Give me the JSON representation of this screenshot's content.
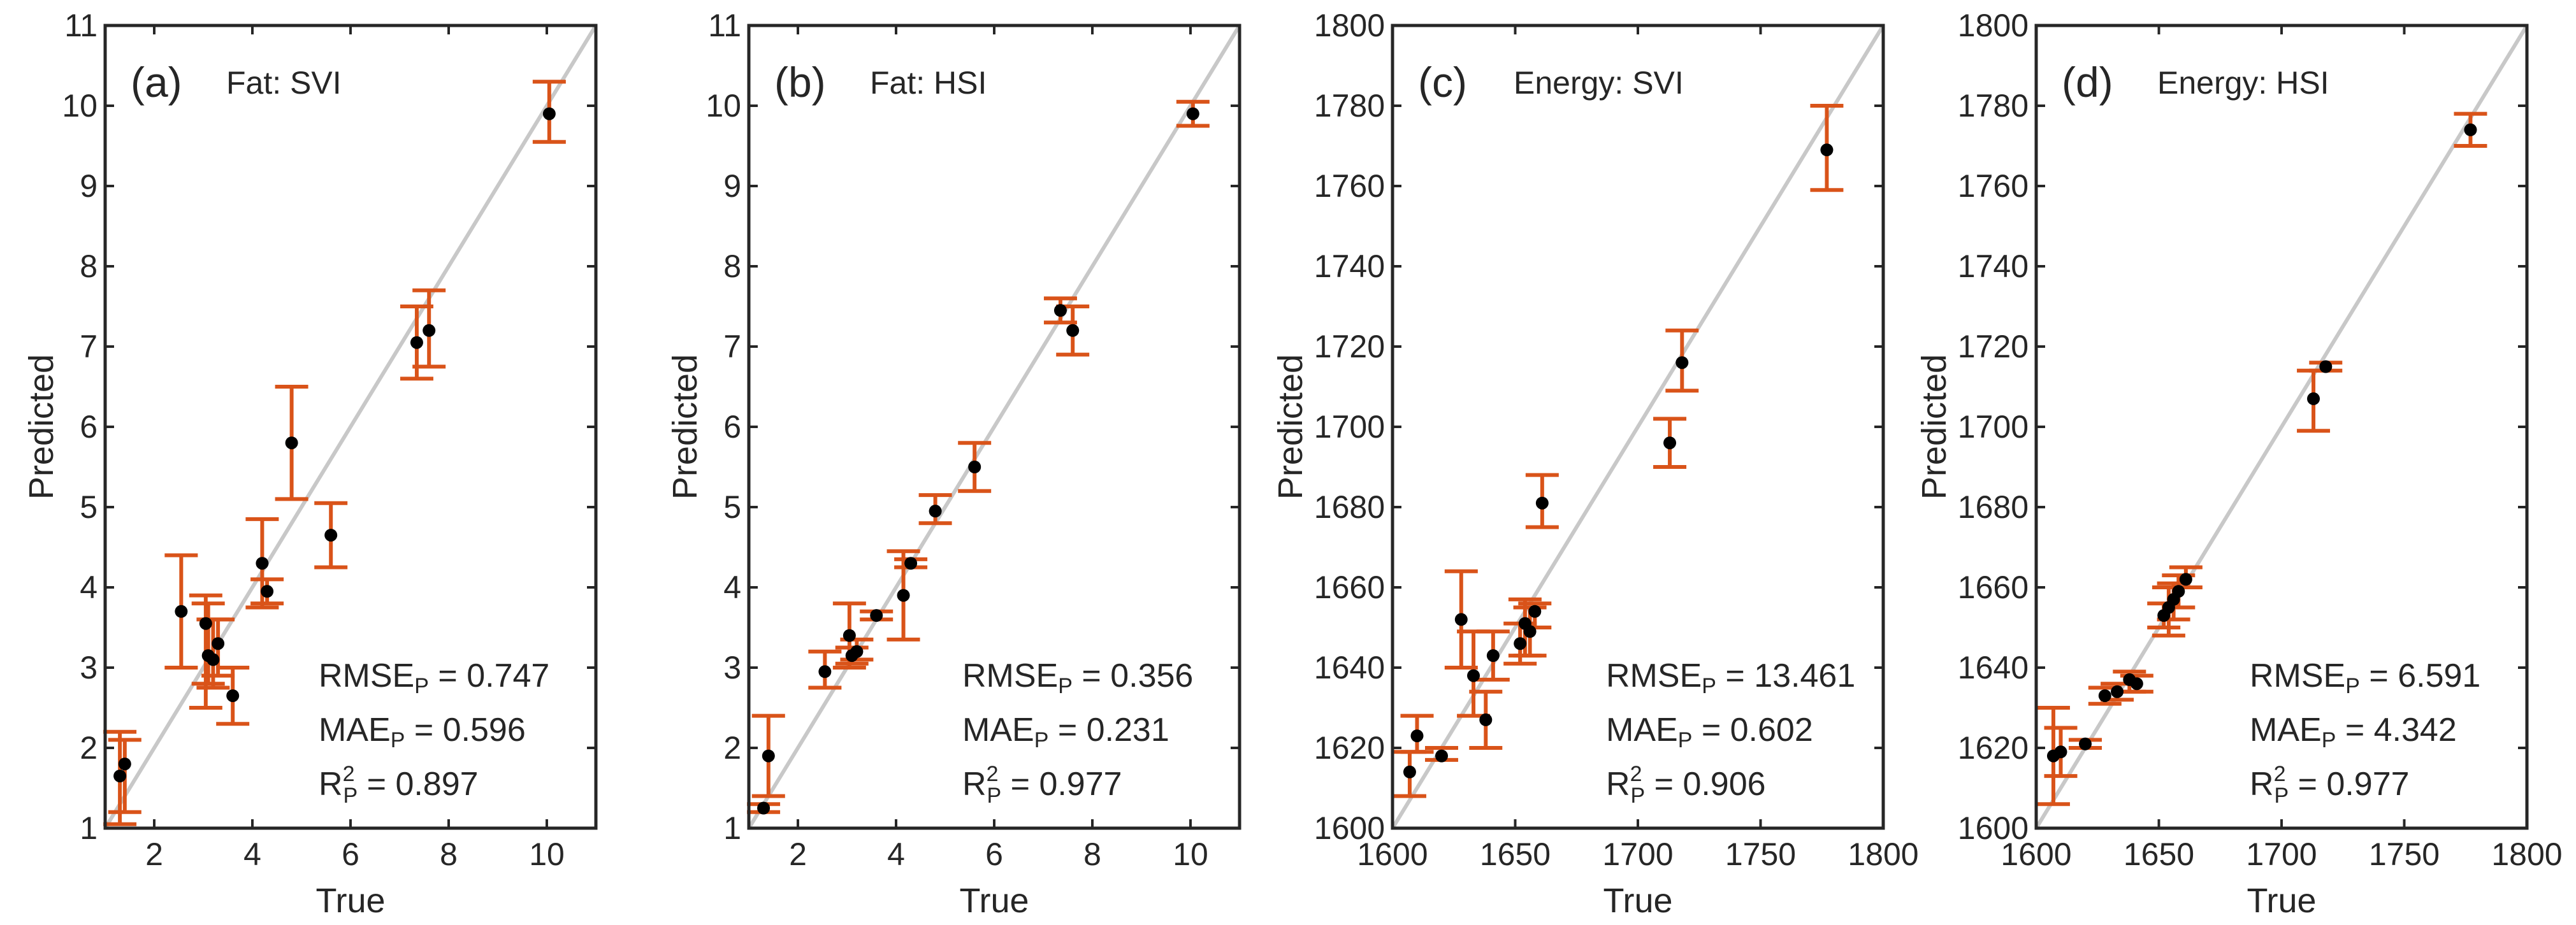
{
  "figure": {
    "description_text": null
  },
  "colors": {
    "axis": "#262626",
    "identity_line": "#c8c8c8",
    "error_bar": "#d95319",
    "point": "#000000"
  },
  "chart_data": [
    {
      "type": "scatter",
      "panel_tag": "(a)",
      "title": "Fat: SVI",
      "xlabel": "True",
      "ylabel": "Predicted",
      "xlim": [
        1,
        11
      ],
      "ylim": [
        1,
        11
      ],
      "xticks": [
        2,
        4,
        6,
        8,
        10
      ],
      "yticks": [
        1,
        2,
        3,
        4,
        5,
        6,
        7,
        8,
        9,
        10,
        11
      ],
      "identity_line": true,
      "metrics": {
        "rmse_label": "RMSE",
        "rmse_sub": "P",
        "rmse_value": "0.747",
        "mae_label": "MAE",
        "mae_sub": "P",
        "mae_value": "0.596",
        "r2_label": "R",
        "r2_sup": "2",
        "r2_sub": "P",
        "r2_value": "0.897"
      },
      "points": [
        {
          "x": 1.3,
          "y": 1.65,
          "lo": 1.05,
          "hi": 2.2
        },
        {
          "x": 1.4,
          "y": 1.8,
          "lo": 1.2,
          "hi": 2.1
        },
        {
          "x": 2.55,
          "y": 3.7,
          "lo": 3.0,
          "hi": 4.4
        },
        {
          "x": 3.05,
          "y": 3.55,
          "lo": 2.5,
          "hi": 3.9
        },
        {
          "x": 3.1,
          "y": 3.15,
          "lo": 2.8,
          "hi": 3.8
        },
        {
          "x": 3.2,
          "y": 3.1,
          "lo": 2.75,
          "hi": 3.6
        },
        {
          "x": 3.3,
          "y": 3.3,
          "lo": 2.9,
          "hi": 3.6
        },
        {
          "x": 3.6,
          "y": 2.65,
          "lo": 2.3,
          "hi": 3.0
        },
        {
          "x": 4.2,
          "y": 4.3,
          "lo": 3.75,
          "hi": 4.85
        },
        {
          "x": 4.3,
          "y": 3.95,
          "lo": 3.8,
          "hi": 4.1
        },
        {
          "x": 4.8,
          "y": 5.8,
          "lo": 5.1,
          "hi": 6.5
        },
        {
          "x": 5.6,
          "y": 4.65,
          "lo": 4.25,
          "hi": 5.05
        },
        {
          "x": 7.35,
          "y": 7.05,
          "lo": 6.6,
          "hi": 7.5
        },
        {
          "x": 7.6,
          "y": 7.2,
          "lo": 6.75,
          "hi": 7.7
        },
        {
          "x": 10.05,
          "y": 9.9,
          "lo": 9.55,
          "hi": 10.3
        }
      ]
    },
    {
      "type": "scatter",
      "panel_tag": "(b)",
      "title": "Fat: HSI",
      "xlabel": "True",
      "ylabel": "Predicted",
      "xlim": [
        1,
        11
      ],
      "ylim": [
        1,
        11
      ],
      "xticks": [
        2,
        4,
        6,
        8,
        10
      ],
      "yticks": [
        1,
        2,
        3,
        4,
        5,
        6,
        7,
        8,
        9,
        10,
        11
      ],
      "identity_line": true,
      "metrics": {
        "rmse_label": "RMSE",
        "rmse_sub": "P",
        "rmse_value": "0.356",
        "mae_label": "MAE",
        "mae_sub": "P",
        "mae_value": "0.231",
        "r2_label": "R",
        "r2_sup": "2",
        "r2_sub": "P",
        "r2_value": "0.977"
      },
      "points": [
        {
          "x": 1.3,
          "y": 1.25,
          "lo": 1.2,
          "hi": 1.3
        },
        {
          "x": 1.4,
          "y": 1.9,
          "lo": 1.4,
          "hi": 2.4
        },
        {
          "x": 2.55,
          "y": 2.95,
          "lo": 2.75,
          "hi": 3.2
        },
        {
          "x": 3.05,
          "y": 3.4,
          "lo": 3.0,
          "hi": 3.8
        },
        {
          "x": 3.1,
          "y": 3.15,
          "lo": 3.05,
          "hi": 3.25
        },
        {
          "x": 3.2,
          "y": 3.2,
          "lo": 3.1,
          "hi": 3.35
        },
        {
          "x": 3.6,
          "y": 3.65,
          "lo": 3.6,
          "hi": 3.7
        },
        {
          "x": 4.15,
          "y": 3.9,
          "lo": 3.35,
          "hi": 4.45
        },
        {
          "x": 4.3,
          "y": 4.3,
          "lo": 4.25,
          "hi": 4.35
        },
        {
          "x": 4.8,
          "y": 4.95,
          "lo": 4.8,
          "hi": 5.15
        },
        {
          "x": 5.6,
          "y": 5.5,
          "lo": 5.2,
          "hi": 5.8
        },
        {
          "x": 7.35,
          "y": 7.45,
          "lo": 7.3,
          "hi": 7.6
        },
        {
          "x": 7.6,
          "y": 7.2,
          "lo": 6.9,
          "hi": 7.5
        },
        {
          "x": 10.05,
          "y": 9.9,
          "lo": 9.75,
          "hi": 10.05
        }
      ]
    },
    {
      "type": "scatter",
      "panel_tag": "(c)",
      "title": "Energy: SVI",
      "xlabel": "True",
      "ylabel": "Predicted",
      "xlim": [
        1600,
        1800
      ],
      "ylim": [
        1600,
        1800
      ],
      "xticks": [
        1600,
        1650,
        1700,
        1750,
        1800
      ],
      "yticks": [
        1600,
        1620,
        1640,
        1660,
        1680,
        1700,
        1720,
        1740,
        1760,
        1780,
        1800
      ],
      "identity_line": true,
      "metrics": {
        "rmse_label": "RMSE",
        "rmse_sub": "P",
        "rmse_value": "13.461",
        "mae_label": "MAE",
        "mae_sub": "P",
        "mae_value": "0.602",
        "r2_label": "R",
        "r2_sup": "2",
        "r2_sub": "P",
        "r2_value": "0.906"
      },
      "points": [
        {
          "x": 1607,
          "y": 1614,
          "lo": 1608,
          "hi": 1619
        },
        {
          "x": 1610,
          "y": 1623,
          "lo": 1619,
          "hi": 1628
        },
        {
          "x": 1620,
          "y": 1618,
          "lo": 1617,
          "hi": 1620
        },
        {
          "x": 1628,
          "y": 1652,
          "lo": 1640,
          "hi": 1664
        },
        {
          "x": 1633,
          "y": 1638,
          "lo": 1628,
          "hi": 1649
        },
        {
          "x": 1638,
          "y": 1627,
          "lo": 1620,
          "hi": 1634
        },
        {
          "x": 1641,
          "y": 1643,
          "lo": 1637,
          "hi": 1649
        },
        {
          "x": 1652,
          "y": 1646,
          "lo": 1641,
          "hi": 1651
        },
        {
          "x": 1654,
          "y": 1651,
          "lo": 1643,
          "hi": 1657
        },
        {
          "x": 1656,
          "y": 1649,
          "lo": 1643,
          "hi": 1655
        },
        {
          "x": 1658,
          "y": 1654,
          "lo": 1650,
          "hi": 1656
        },
        {
          "x": 1661,
          "y": 1681,
          "lo": 1675,
          "hi": 1688
        },
        {
          "x": 1713,
          "y": 1696,
          "lo": 1690,
          "hi": 1702
        },
        {
          "x": 1718,
          "y": 1716,
          "lo": 1709,
          "hi": 1724
        },
        {
          "x": 1777,
          "y": 1769,
          "lo": 1759,
          "hi": 1780
        }
      ]
    },
    {
      "type": "scatter",
      "panel_tag": "(d)",
      "title": "Energy: HSI",
      "xlabel": "True",
      "ylabel": "Predicted",
      "xlim": [
        1600,
        1800
      ],
      "ylim": [
        1600,
        1800
      ],
      "xticks": [
        1600,
        1650,
        1700,
        1750,
        1800
      ],
      "yticks": [
        1600,
        1620,
        1640,
        1660,
        1680,
        1700,
        1720,
        1740,
        1760,
        1780,
        1800
      ],
      "identity_line": true,
      "metrics": {
        "rmse_label": "RMSE",
        "rmse_sub": "P",
        "rmse_value": "6.591",
        "mae_label": "MAE",
        "mae_sub": "P",
        "mae_value": "4.342",
        "r2_label": "R",
        "r2_sup": "2",
        "r2_sub": "P",
        "r2_value": "0.977"
      },
      "points": [
        {
          "x": 1607,
          "y": 1618,
          "lo": 1606,
          "hi": 1630
        },
        {
          "x": 1610,
          "y": 1619,
          "lo": 1613,
          "hi": 1625
        },
        {
          "x": 1620,
          "y": 1621,
          "lo": 1620,
          "hi": 1622
        },
        {
          "x": 1628,
          "y": 1633,
          "lo": 1631,
          "hi": 1635
        },
        {
          "x": 1633,
          "y": 1634,
          "lo": 1632,
          "hi": 1636
        },
        {
          "x": 1638,
          "y": 1637,
          "lo": 1634,
          "hi": 1639
        },
        {
          "x": 1641,
          "y": 1636,
          "lo": 1634,
          "hi": 1638
        },
        {
          "x": 1652,
          "y": 1653,
          "lo": 1650,
          "hi": 1656
        },
        {
          "x": 1654,
          "y": 1655,
          "lo": 1648,
          "hi": 1660
        },
        {
          "x": 1656,
          "y": 1657,
          "lo": 1652,
          "hi": 1661
        },
        {
          "x": 1658,
          "y": 1659,
          "lo": 1655,
          "hi": 1663
        },
        {
          "x": 1661,
          "y": 1662,
          "lo": 1660,
          "hi": 1665
        },
        {
          "x": 1713,
          "y": 1707,
          "lo": 1699,
          "hi": 1714
        },
        {
          "x": 1718,
          "y": 1715,
          "lo": 1714,
          "hi": 1716
        },
        {
          "x": 1777,
          "y": 1774,
          "lo": 1770,
          "hi": 1778
        }
      ]
    }
  ]
}
